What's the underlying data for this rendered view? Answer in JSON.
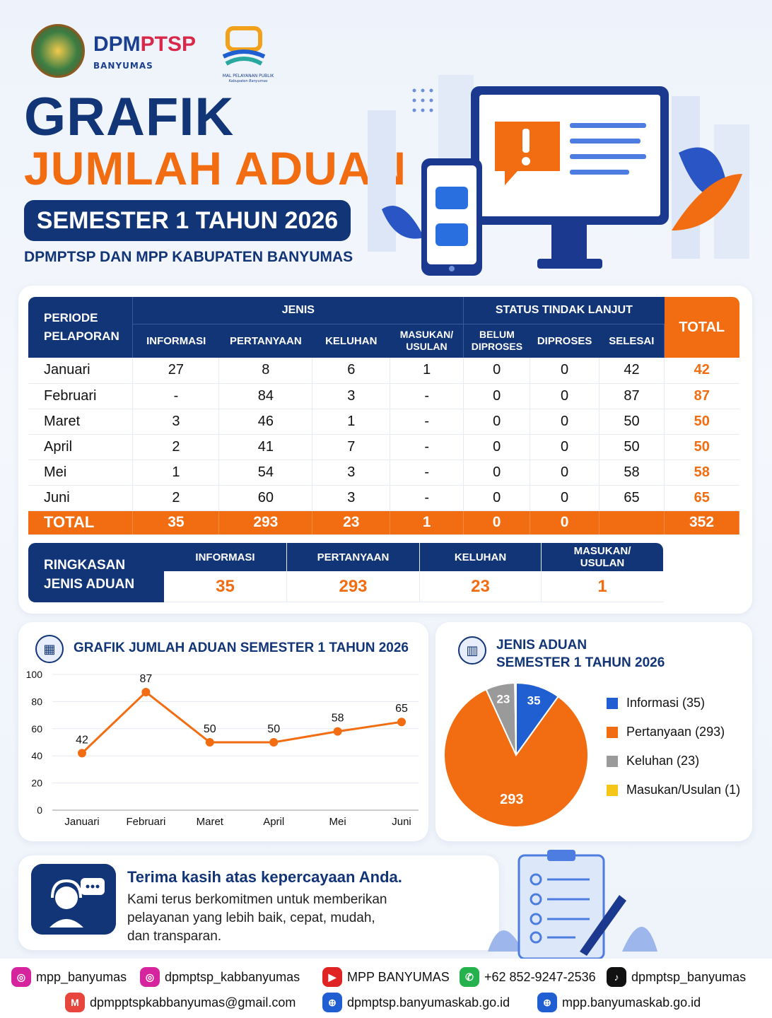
{
  "header": {
    "logo_dpm_a": "DPM",
    "logo_dpm_b": "PTSP",
    "logo_dpm_sub": "BANYUMAS",
    "logo_mpp_line1": "MAL PELAYANAN PUBLIK",
    "logo_mpp_line2": "Kabupaten Banyumas",
    "title_line1": "GRAFIK",
    "title_line2": "JUMLAH ADUAN",
    "period_pill": "SEMESTER 1 TAHUN 2026",
    "subtitle": "DPMPTSP DAN MPP KABUPATEN BANYUMAS"
  },
  "table": {
    "group_headers": {
      "periode": [
        "PERIODE",
        "PELAPORAN"
      ],
      "jenis": "JENIS",
      "status": "STATUS TINDAK LANJUT",
      "total": "TOTAL"
    },
    "sub_headers": [
      [
        "INFORMASI"
      ],
      [
        "PERTANYAAN"
      ],
      [
        "KELUHAN"
      ],
      [
        "MASUKAN/",
        "USULAN"
      ],
      [
        "BELUM",
        "DIPROSES"
      ],
      [
        "DIPROSES"
      ],
      [
        "SELESAI"
      ]
    ],
    "rows": [
      [
        "Januari",
        "27",
        "8",
        "6",
        "1",
        "0",
        "0",
        "42",
        "42"
      ],
      [
        "Februari",
        "-",
        "84",
        "3",
        "-",
        "0",
        "0",
        "87",
        "87"
      ],
      [
        "Maret",
        "3",
        "46",
        "1",
        "-",
        "0",
        "0",
        "50",
        "50"
      ],
      [
        "April",
        "2",
        "41",
        "7",
        "-",
        "0",
        "0",
        "50",
        "50"
      ],
      [
        "Mei",
        "1",
        "54",
        "3",
        "-",
        "0",
        "0",
        "58",
        "58"
      ],
      [
        "Juni",
        "2",
        "60",
        "3",
        "-",
        "0",
        "0",
        "65",
        "65"
      ]
    ],
    "total_row": [
      "TOTAL",
      "35",
      "293",
      "23",
      "1",
      "0",
      "0",
      "",
      "352"
    ]
  },
  "ringkasan": {
    "label": [
      "RINGKASAN",
      "JENIS ADUAN"
    ],
    "items": [
      {
        "label": [
          "INFORMASI"
        ],
        "value": "35"
      },
      {
        "label": [
          "PERTANYAAN"
        ],
        "value": "293"
      },
      {
        "label": [
          "KELUHAN"
        ],
        "value": "23"
      },
      {
        "label": [
          "MASUKAN/",
          "USULAN"
        ],
        "value": "1"
      }
    ]
  },
  "chart_data": [
    {
      "type": "line",
      "title": "GRAFIK JUMLAH ADUAN SEMESTER 1 TAHUN 2026",
      "categories": [
        "Januari",
        "Februari",
        "Maret",
        "April",
        "Mei",
        "Juni"
      ],
      "values": [
        42,
        87,
        50,
        50,
        58,
        65
      ],
      "ylim": [
        0,
        100
      ],
      "yticks": [
        0,
        20,
        40,
        60,
        80,
        100
      ],
      "grid": true,
      "color": "#f26d12"
    },
    {
      "type": "pie",
      "title": [
        "JENIS ADUAN",
        "SEMESTER 1 TAHUN 2026"
      ],
      "slices": [
        {
          "label": "Informasi (35)",
          "value": 35,
          "color": "#1f5fd1",
          "show_label": "35"
        },
        {
          "label": "Pertanyaan (293)",
          "value": 293,
          "color": "#f26d12",
          "show_label": "293"
        },
        {
          "label": "Keluhan (23)",
          "value": 23,
          "color": "#9a9a9a",
          "show_label": "23"
        },
        {
          "label": "Masukan/Usulan (1)",
          "value": 1,
          "color": "#f5c518",
          "show_label": ""
        }
      ],
      "legend": "right"
    }
  ],
  "thanks": {
    "title": "Terima  kasih atas kepercayaan Anda.",
    "body": [
      "Kami terus berkomitmen untuk memberikan",
      "pelayanan yang lebih baik, cepat, mudah,",
      "dan transparan."
    ]
  },
  "footer": {
    "row1": [
      {
        "icon": "instagram-icon",
        "color": "#d6249f",
        "text": "mpp_banyumas"
      },
      {
        "icon": "instagram-icon",
        "color": "#d6249f",
        "text": "dpmptsp_kabbanyumas"
      },
      {
        "icon": "youtube-icon",
        "color": "#e02424",
        "text": "MPP BANYUMAS"
      },
      {
        "icon": "whatsapp-icon",
        "color": "#25b14c",
        "text": "+62 852-9247-2536"
      },
      {
        "icon": "tiktok-icon",
        "color": "#111111",
        "text": "dpmptsp_banyumas"
      }
    ],
    "row2": [
      {
        "icon": "gmail-icon",
        "color": "#e8453c",
        "text": "dpmpptspkabbanyumas@gmail.com"
      },
      {
        "icon": "globe-icon",
        "color": "#1f5fd1",
        "text": "dpmptsp.banyumaskab.go.id"
      },
      {
        "icon": "globe-icon",
        "color": "#1f5fd1",
        "text": "mpp.banyumaskab.go.id"
      }
    ]
  }
}
